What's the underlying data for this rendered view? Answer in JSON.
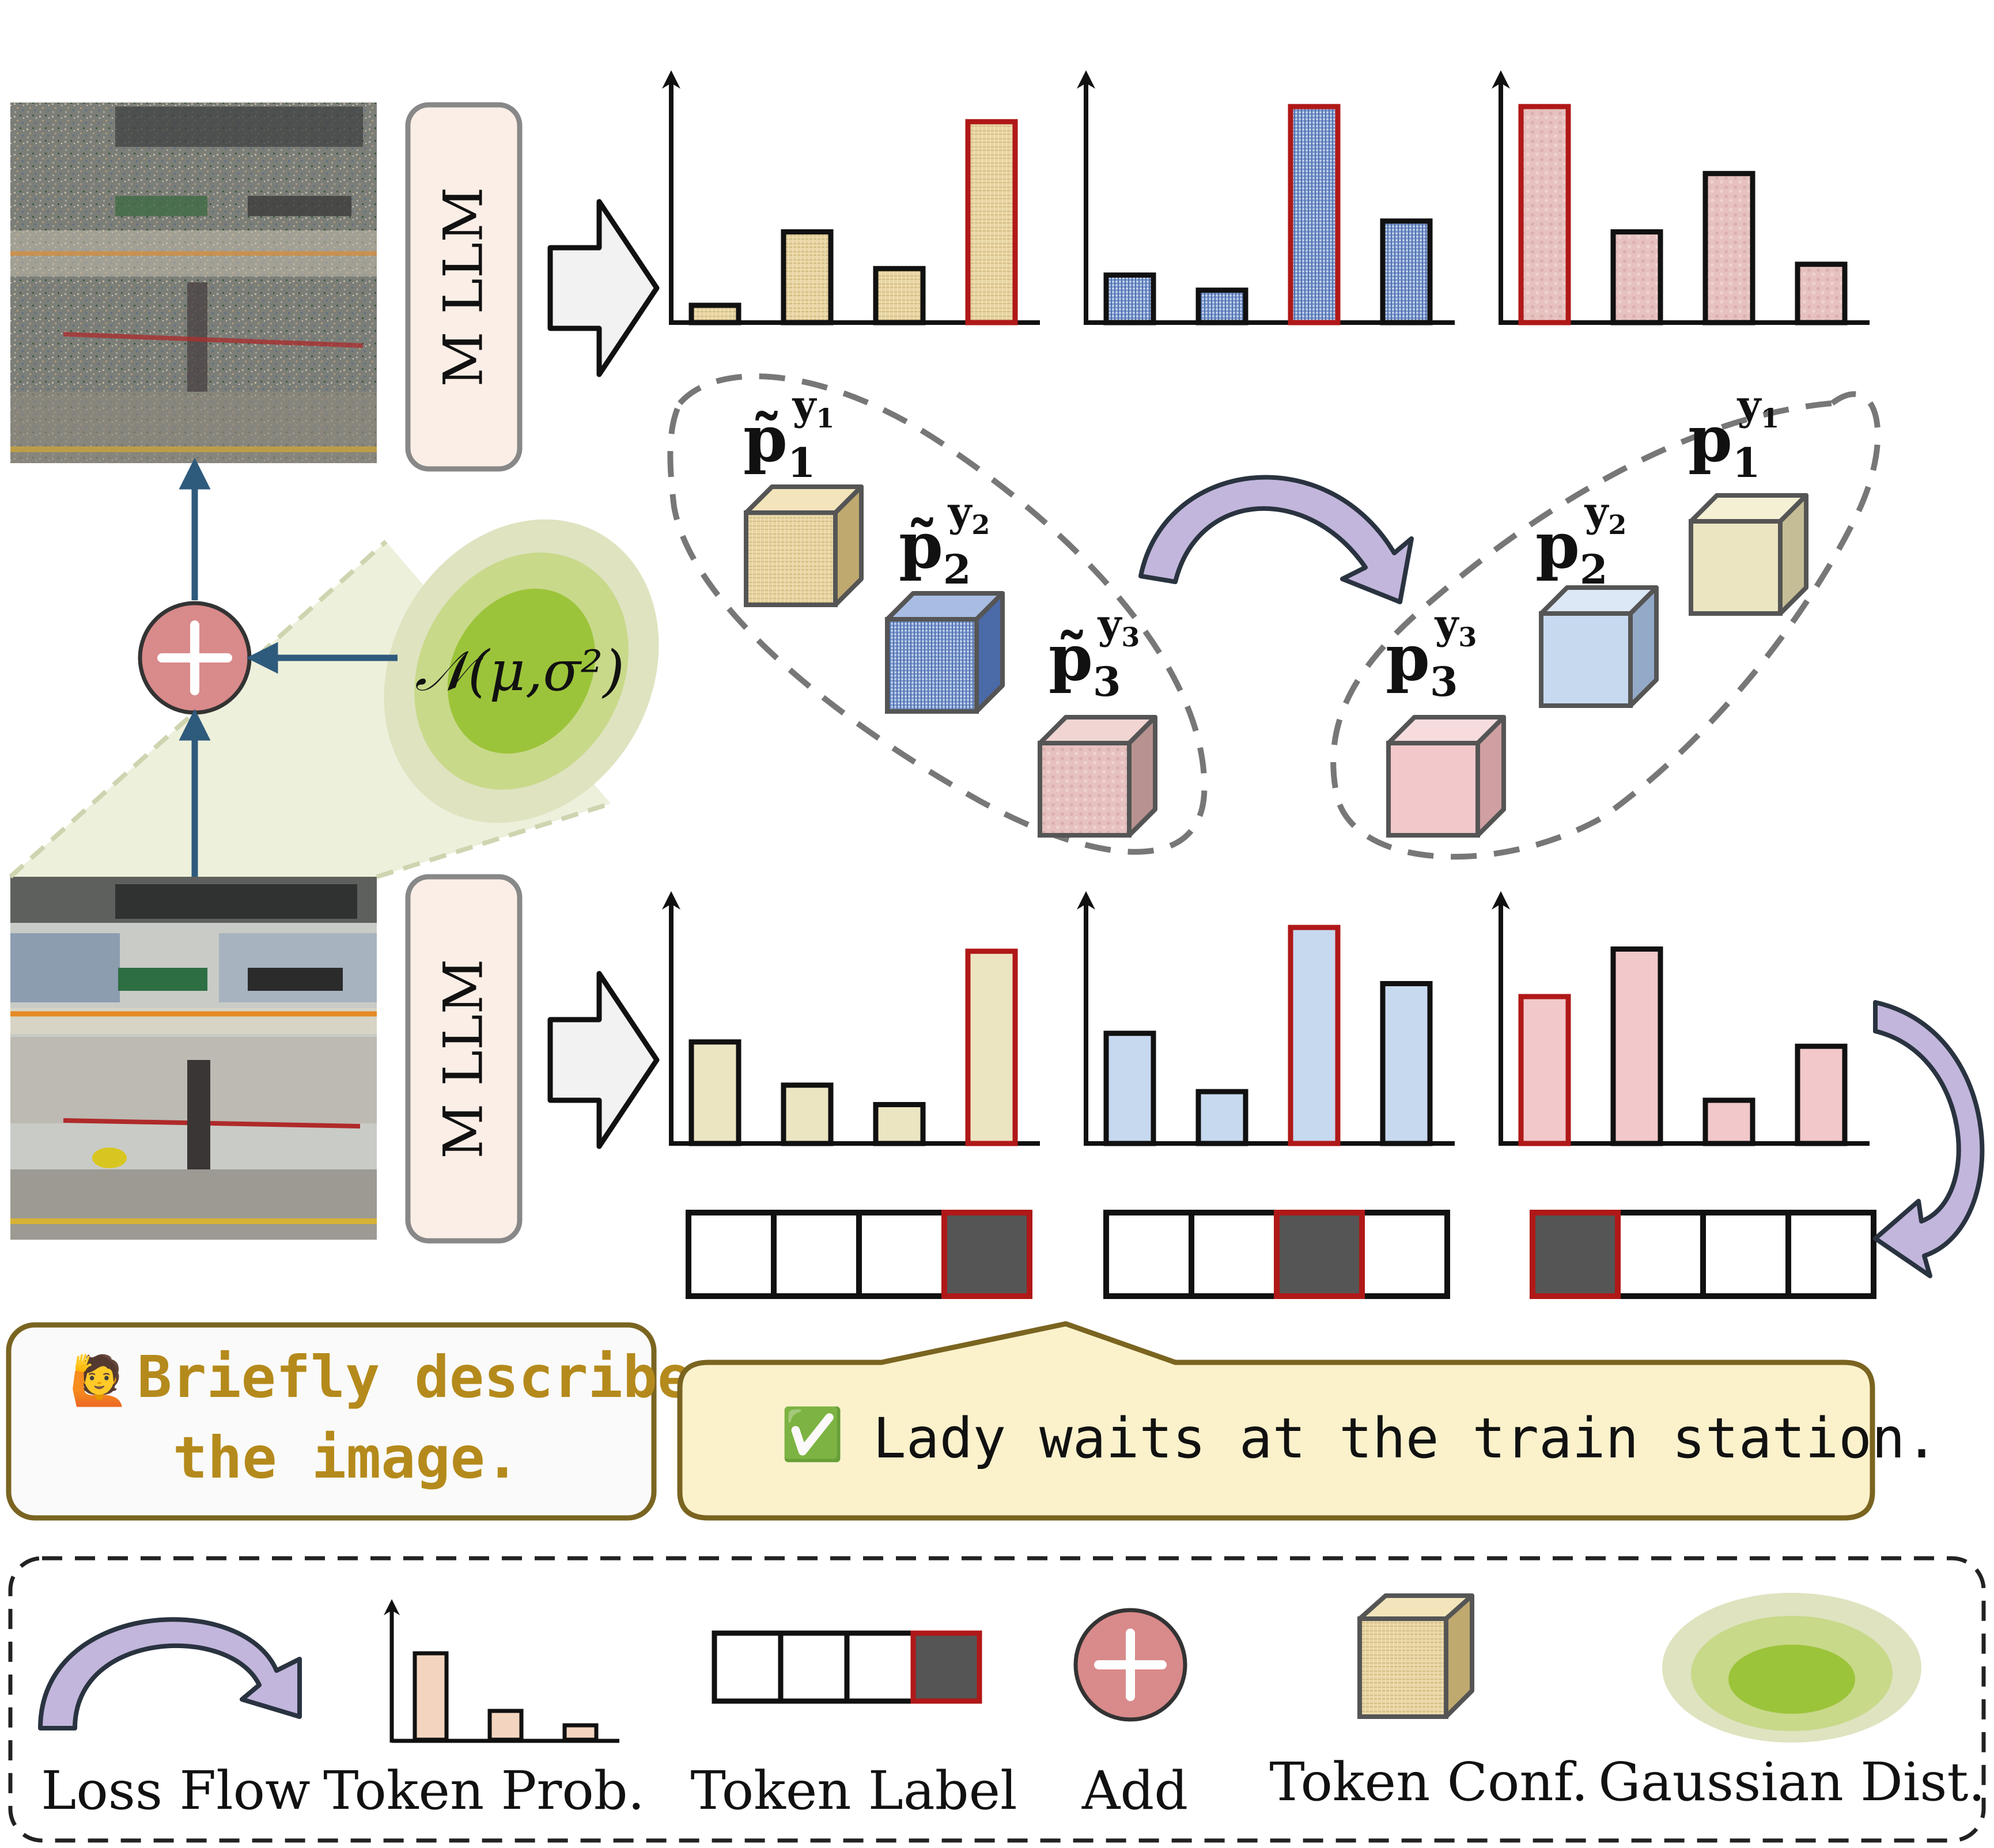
{
  "mllm_label": "M LLM",
  "gaussian_label": "𝒩(μ,σ²)",
  "prompt": {
    "emoji": "🙋",
    "line1": "Briefly describe",
    "line2": "the image."
  },
  "answer": {
    "check": "✅",
    "text": "Lady waits at the train station."
  },
  "noisy_tokens": [
    {
      "p": "p̃",
      "sub": "1",
      "sup": "y",
      "supsub": "1"
    },
    {
      "p": "p̃",
      "sub": "2",
      "sup": "y",
      "supsub": "2"
    },
    {
      "p": "p̃",
      "sub": "3",
      "sup": "y",
      "supsub": "3"
    }
  ],
  "clean_tokens": [
    {
      "p": "p",
      "sub": "1",
      "sup": "y",
      "supsub": "1"
    },
    {
      "p": "p",
      "sub": "2",
      "sup": "y",
      "supsub": "2"
    },
    {
      "p": "p",
      "sub": "3",
      "sup": "y",
      "supsub": "3"
    }
  ],
  "token_prob_charts": {
    "noisy": [
      {
        "values": [
          0.08,
          0.42,
          0.25,
          0.93
        ],
        "highlight": 3,
        "fill": "#e8d6a5",
        "pattern": "sand"
      },
      {
        "values": [
          0.22,
          0.15,
          1.0,
          0.47
        ],
        "highlight": 2,
        "fill": "#8da7d6",
        "pattern": "blue"
      },
      {
        "values": [
          1.0,
          0.42,
          0.69,
          0.27
        ],
        "highlight": 0,
        "fill": "#e8c3c3",
        "pattern": "pink"
      }
    ],
    "clean": [
      {
        "values": [
          0.47,
          0.27,
          0.18,
          0.89
        ],
        "highlight": 3,
        "fill": "#ece5c2"
      },
      {
        "values": [
          0.51,
          0.24,
          1.0,
          0.74
        ],
        "highlight": 2,
        "fill": "#c7d9ef"
      },
      {
        "values": [
          0.68,
          0.9,
          0.2,
          0.45
        ],
        "highlight": 0,
        "fill": "#f2c8ca"
      }
    ]
  },
  "token_labels": [
    {
      "filled": 3
    },
    {
      "filled": 2
    },
    {
      "filled": 0
    }
  ],
  "legend": {
    "loss_flow": "Loss Flow",
    "token_prob": "Token Prob.",
    "token_label": "Token Label",
    "add": "Add",
    "token_conf": "Token Conf.",
    "gaussian_dist": "Gaussian Dist."
  },
  "colors": {
    "highlight_red": "#b01818",
    "arrow_blue": "#2e5a7c",
    "loss_flow_purple": "#c2b6dc",
    "add_circle": "#d98a8a",
    "gaussian_outer": "#dfe3c0",
    "gaussian_mid": "#c8d98a",
    "gaussian_inner": "#9cc43a",
    "prompt_text": "#b58a1c",
    "answer_bg": "#fbf2cc",
    "box_border": "#7a6420",
    "mllm_fill": "#fbeee6",
    "mllm_border": "#888888"
  }
}
